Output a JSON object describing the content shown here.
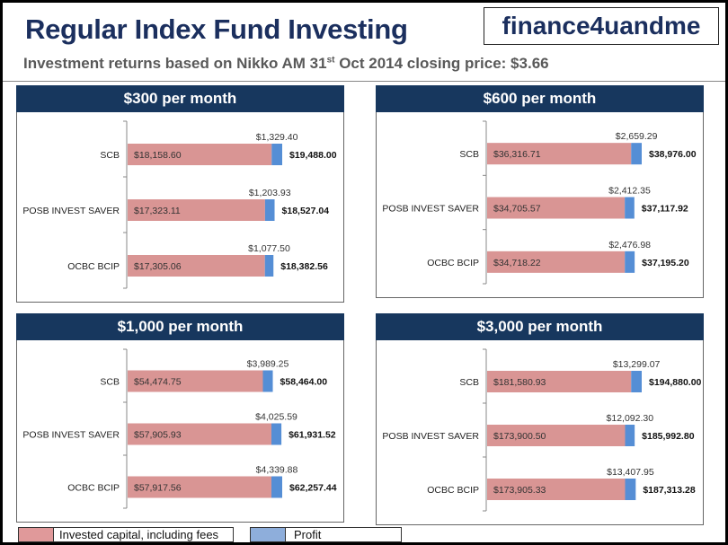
{
  "header": {
    "title": "Regular Index Fund Investing",
    "logo_text": "finance4uandme",
    "subtitle_pre": "Investment returns based on Nikko AM 31",
    "subtitle_sup": "st",
    "subtitle_post": " Oct 2014 closing price: $3.66"
  },
  "colors": {
    "invested": "#d99594",
    "profit": "#558ed5",
    "panel_header": "#17375e",
    "title": "#1b2f5e"
  },
  "legend": {
    "invested_label": "Invested  capital, including fees",
    "profit_label": "Profit"
  },
  "chart_data": [
    {
      "type": "bar",
      "orientation": "horizontal",
      "stacked": true,
      "title": "$300 per month",
      "categories": [
        "SCB",
        "POSB INVEST SAVER",
        "OCBC BCIP"
      ],
      "series": [
        {
          "name": "Invested  capital, including fees",
          "values": [
            18158.6,
            17323.11,
            17305.06
          ],
          "labels": [
            "$18,158.60",
            "$17,323.11",
            "$17,305.06"
          ]
        },
        {
          "name": "Profit",
          "values": [
            1329.4,
            1203.93,
            1077.5
          ],
          "labels": [
            "$1,329.40",
            "$1,203.93",
            "$1,077.50"
          ]
        }
      ],
      "totals": [
        "$19,488.00",
        "$18,527.04",
        "$18,382.56"
      ]
    },
    {
      "type": "bar",
      "orientation": "horizontal",
      "stacked": true,
      "title": "$600 per month",
      "categories": [
        "SCB",
        "POSB INVEST SAVER",
        "OCBC BCIP"
      ],
      "series": [
        {
          "name": "Invested  capital, including fees",
          "values": [
            36316.71,
            34705.57,
            34718.22
          ],
          "labels": [
            "$36,316.71",
            "$34,705.57",
            "$34,718.22"
          ]
        },
        {
          "name": "Profit",
          "values": [
            2659.29,
            2412.35,
            2476.98
          ],
          "labels": [
            "$2,659.29",
            "$2,412.35",
            "$2,476.98"
          ]
        }
      ],
      "totals": [
        "$38,976.00",
        "$37,117.92",
        "$37,195.20"
      ]
    },
    {
      "type": "bar",
      "orientation": "horizontal",
      "stacked": true,
      "title": "$1,000 per month",
      "categories": [
        "SCB",
        "POSB INVEST SAVER",
        "OCBC BCIP"
      ],
      "series": [
        {
          "name": "Invested  capital, including fees",
          "values": [
            54474.75,
            57905.93,
            57917.56
          ],
          "labels": [
            "$54,474.75",
            "$57,905.93",
            "$57,917.56"
          ]
        },
        {
          "name": "Profit",
          "values": [
            3989.25,
            4025.59,
            4339.88
          ],
          "labels": [
            "$3,989.25",
            "$4,025.59",
            "$4,339.88"
          ]
        }
      ],
      "totals": [
        "$58,464.00",
        "$61,931.52",
        "$62,257.44"
      ]
    },
    {
      "type": "bar",
      "orientation": "horizontal",
      "stacked": true,
      "title": "$3,000 per month",
      "categories": [
        "SCB",
        "POSB INVEST SAVER",
        "OCBC BCIP"
      ],
      "series": [
        {
          "name": "Invested  capital, including fees",
          "values": [
            181580.93,
            173900.5,
            173905.33
          ],
          "labels": [
            "$181,580.93",
            "$173,900.50",
            "$173,905.33"
          ]
        },
        {
          "name": "Profit",
          "values": [
            13299.07,
            12092.3,
            13407.95
          ],
          "labels": [
            "$13,299.07",
            "$12,092.30",
            "$13,407.95"
          ]
        }
      ],
      "totals": [
        "$194,880.00",
        "$185,992.80",
        "$187,313.28"
      ]
    }
  ]
}
